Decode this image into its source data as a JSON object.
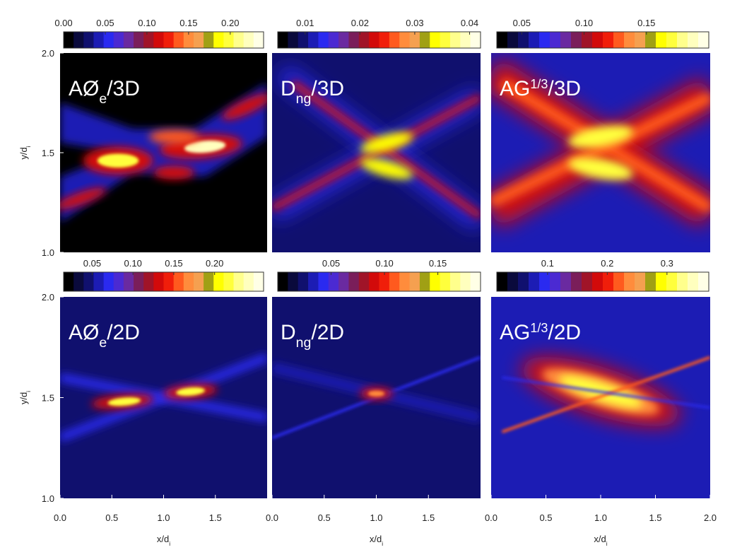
{
  "colormap": [
    "#000000",
    "#0a0a3c",
    "#10106e",
    "#1c1cb4",
    "#2a2af0",
    "#4b2ad2",
    "#6a2aa0",
    "#7a1e5a",
    "#a01428",
    "#d20a0a",
    "#f01e0a",
    "#ff5a1e",
    "#ff8c3c",
    "#f5a050",
    "#a0a014",
    "#ffff00",
    "#ffff3c",
    "#ffff8c",
    "#ffffbe",
    "#ffffe6"
  ],
  "chart_data": [
    {
      "type": "heatmap",
      "title": {
        "main": "AØ",
        "sub": "e",
        "rest": "/3D"
      },
      "xlim": [
        0,
        2
      ],
      "ylim": [
        1,
        2
      ],
      "yticks": [
        {
          "value": 1,
          "label": "1.0"
        },
        1.5,
        {
          "value": 2,
          "label": "2.0"
        }
      ],
      "ylabel": {
        "main": "y/d",
        "sub": "i"
      },
      "colorbar": {
        "lim": [
          0,
          0.24
        ],
        "ticks": [
          {
            "value": 0,
            "label": "0.00"
          },
          0.05,
          {
            "value": 0.1,
            "label": "0.10"
          },
          0.15,
          {
            "value": 0.2,
            "label": "0.20"
          }
        ]
      }
    },
    {
      "type": "heatmap",
      "title": {
        "main": "D",
        "sub": "ng",
        "rest": "/3D"
      },
      "xlim": [
        0,
        2
      ],
      "ylim": [
        1,
        2
      ],
      "colorbar": {
        "lim": [
          0.005,
          0.042
        ],
        "ticks": [
          0.01,
          0.02,
          0.03,
          0.04
        ]
      }
    },
    {
      "type": "heatmap",
      "title": {
        "main": "AG",
        "sup": "1/3",
        "rest": "/3D"
      },
      "xlim": [
        0,
        2
      ],
      "ylim": [
        1,
        2
      ],
      "colorbar": {
        "lim": [
          0.03,
          0.2
        ],
        "ticks": [
          0.05,
          {
            "value": 0.1,
            "label": "0.10"
          },
          0.15
        ]
      }
    },
    {
      "type": "heatmap",
      "title": {
        "main": "AØ",
        "sub": "e",
        "rest": "/2D"
      },
      "xlim": [
        0,
        2
      ],
      "ylim": [
        1,
        2
      ],
      "xticks": [
        {
          "value": 0,
          "label": "0.0"
        },
        0.5,
        {
          "value": 1,
          "label": "1.0"
        },
        1.5
      ],
      "xlabel": {
        "main": "x/d",
        "sub": "i"
      },
      "yticks": [
        {
          "value": 1,
          "label": "1.0"
        },
        1.5,
        {
          "value": 2,
          "label": "2.0"
        }
      ],
      "ylabel": {
        "main": "y/d",
        "sub": "i"
      },
      "colorbar": {
        "lim": [
          0.015,
          0.26
        ],
        "ticks": [
          0.05,
          {
            "value": 0.1,
            "label": "0.10"
          },
          0.15,
          {
            "value": 0.2,
            "label": "0.20"
          }
        ]
      }
    },
    {
      "type": "heatmap",
      "title": {
        "main": "D",
        "sub": "ng",
        "rest": "/2D"
      },
      "xlim": [
        0,
        2
      ],
      "ylim": [
        1,
        2
      ],
      "xticks": [
        {
          "value": 0,
          "label": "0.0"
        },
        0.5,
        {
          "value": 1,
          "label": "1.0"
        },
        1.5
      ],
      "xlabel": {
        "main": "x/d",
        "sub": "i"
      },
      "colorbar": {
        "lim": [
          0,
          0.19
        ],
        "ticks": [
          0.05,
          {
            "value": 0.1,
            "label": "0.10"
          },
          0.15
        ]
      }
    },
    {
      "type": "heatmap",
      "title": {
        "main": "AG",
        "sup": "1/3",
        "rest": "/2D"
      },
      "xlim": [
        0,
        2
      ],
      "ylim": [
        1,
        2
      ],
      "xticks": [
        {
          "value": 0,
          "label": "0.0"
        },
        0.5,
        {
          "value": 1,
          "label": "1.0"
        },
        1.5,
        {
          "value": 2,
          "label": "2.0"
        }
      ],
      "xlabel": {
        "main": "x/d",
        "sub": "i"
      },
      "colorbar": {
        "lim": [
          0.015,
          0.37
        ],
        "ticks": [
          0.1,
          0.2,
          0.3
        ]
      }
    }
  ]
}
